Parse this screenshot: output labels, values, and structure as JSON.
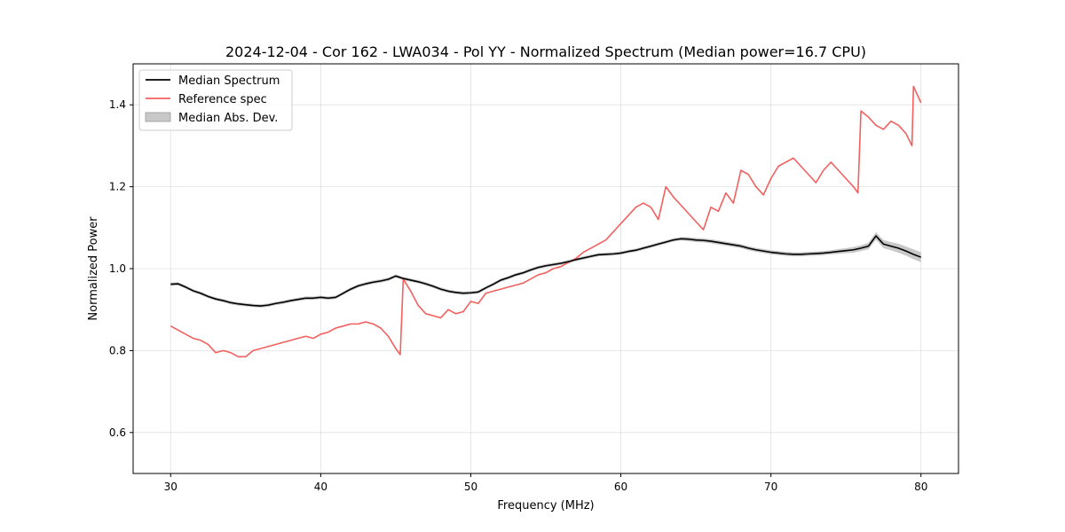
{
  "chart_data": {
    "type": "line",
    "title": "2024-12-04 - Cor 162 - LWA034 - Pol YY - Normalized Spectrum (Median power=16.7 CPU)",
    "xlabel": "Frequency (MHz)",
    "ylabel": "Normalized Power",
    "xlim": [
      27.5,
      82.5
    ],
    "ylim": [
      0.5,
      1.5
    ],
    "xticks": [
      30,
      40,
      50,
      60,
      70,
      80
    ],
    "yticks": [
      0.6,
      0.8,
      1.0,
      1.2,
      1.4
    ],
    "xtick_labels": [
      "30",
      "40",
      "50",
      "60",
      "70",
      "80"
    ],
    "ytick_labels": [
      "0.6",
      "0.8",
      "1.0",
      "1.2",
      "1.4"
    ],
    "grid": true,
    "legend_position": "top-left",
    "legend": [
      "Median Spectrum",
      "Reference spec",
      "Median Abs. Dev."
    ],
    "colors": {
      "median": "#000000",
      "reference": "#f26060",
      "mad_fill": "#c8c8c8",
      "grid": "#e0e0e0"
    },
    "series": [
      {
        "name": "Median Spectrum",
        "x": [
          30,
          30.5,
          31,
          31.5,
          32,
          32.5,
          33,
          33.5,
          34,
          34.5,
          35,
          35.5,
          36,
          36.5,
          37,
          37.5,
          38,
          38.5,
          39,
          39.5,
          40,
          40.5,
          41,
          41.5,
          42,
          42.5,
          43,
          43.5,
          44,
          44.5,
          45,
          45.5,
          46,
          46.5,
          47,
          47.5,
          48,
          48.5,
          49,
          49.5,
          50,
          50.5,
          51,
          51.5,
          52,
          52.5,
          53,
          53.5,
          54,
          54.5,
          55,
          55.5,
          56,
          56.5,
          57,
          57.5,
          58,
          58.5,
          59,
          59.5,
          60,
          60.5,
          61,
          61.5,
          62,
          62.5,
          63,
          63.5,
          64,
          64.5,
          65,
          65.5,
          66,
          66.5,
          67,
          67.5,
          68,
          68.5,
          69,
          69.5,
          70,
          70.5,
          71,
          71.5,
          72,
          72.5,
          73,
          73.5,
          74,
          74.5,
          75,
          75.5,
          76,
          76.5,
          77,
          77.5,
          78,
          78.5,
          79,
          79.5,
          80
        ],
        "y": [
          0.962,
          0.963,
          0.955,
          0.946,
          0.94,
          0.932,
          0.926,
          0.922,
          0.917,
          0.914,
          0.912,
          0.91,
          0.909,
          0.911,
          0.915,
          0.918,
          0.922,
          0.925,
          0.928,
          0.928,
          0.93,
          0.928,
          0.93,
          0.94,
          0.95,
          0.958,
          0.963,
          0.967,
          0.97,
          0.974,
          0.982,
          0.976,
          0.972,
          0.968,
          0.963,
          0.957,
          0.95,
          0.945,
          0.942,
          0.94,
          0.941,
          0.943,
          0.953,
          0.962,
          0.972,
          0.978,
          0.985,
          0.99,
          0.997,
          1.003,
          1.007,
          1.01,
          1.013,
          1.017,
          1.022,
          1.026,
          1.03,
          1.034,
          1.035,
          1.036,
          1.038,
          1.042,
          1.045,
          1.05,
          1.055,
          1.06,
          1.065,
          1.07,
          1.073,
          1.072,
          1.07,
          1.069,
          1.067,
          1.064,
          1.061,
          1.058,
          1.055,
          1.05,
          1.046,
          1.043,
          1.04,
          1.038,
          1.036,
          1.035,
          1.035,
          1.036,
          1.037,
          1.038,
          1.04,
          1.042,
          1.044,
          1.046,
          1.05,
          1.055,
          1.08,
          1.06,
          1.055,
          1.05,
          1.043,
          1.035,
          1.028
        ],
        "mad": [
          0.004,
          0.004,
          0.004,
          0.004,
          0.004,
          0.004,
          0.004,
          0.004,
          0.004,
          0.004,
          0.004,
          0.004,
          0.004,
          0.004,
          0.004,
          0.004,
          0.004,
          0.004,
          0.004,
          0.004,
          0.004,
          0.004,
          0.004,
          0.004,
          0.004,
          0.004,
          0.004,
          0.004,
          0.004,
          0.004,
          0.004,
          0.004,
          0.004,
          0.004,
          0.004,
          0.004,
          0.004,
          0.004,
          0.004,
          0.004,
          0.004,
          0.004,
          0.004,
          0.004,
          0.004,
          0.004,
          0.004,
          0.004,
          0.004,
          0.004,
          0.004,
          0.004,
          0.004,
          0.004,
          0.004,
          0.004,
          0.004,
          0.004,
          0.004,
          0.004,
          0.004,
          0.004,
          0.004,
          0.004,
          0.004,
          0.004,
          0.004,
          0.004,
          0.004,
          0.005,
          0.005,
          0.005,
          0.005,
          0.005,
          0.005,
          0.005,
          0.005,
          0.005,
          0.005,
          0.005,
          0.005,
          0.005,
          0.005,
          0.005,
          0.005,
          0.005,
          0.005,
          0.005,
          0.005,
          0.006,
          0.006,
          0.007,
          0.007,
          0.008,
          0.009,
          0.01,
          0.01,
          0.011,
          0.011,
          0.012,
          0.012
        ]
      },
      {
        "name": "Reference spec",
        "x": [
          30,
          30.5,
          31,
          31.5,
          32,
          32.5,
          33,
          33.5,
          34,
          34.5,
          35,
          35.5,
          36,
          36.5,
          37,
          37.5,
          38,
          38.5,
          39,
          39.5,
          40,
          40.5,
          41,
          41.5,
          42,
          42.5,
          43,
          43.5,
          44,
          44.5,
          45,
          45.3,
          45.5,
          46,
          46.5,
          47,
          47.5,
          48,
          48.5,
          49,
          49.5,
          50,
          50.5,
          51,
          51.5,
          52,
          52.5,
          53,
          53.5,
          54,
          54.5,
          55,
          55.5,
          56,
          56.5,
          57,
          57.5,
          58,
          58.5,
          59,
          59.5,
          60,
          60.5,
          61,
          61.5,
          62,
          62.5,
          63,
          63.5,
          64,
          64.5,
          65,
          65.5,
          66,
          66.5,
          67,
          67.5,
          68,
          68.5,
          69,
          69.5,
          70,
          70.5,
          71,
          71.5,
          72,
          72.5,
          73,
          73.5,
          74,
          74.5,
          75,
          75.5,
          75.8,
          76,
          76.5,
          77,
          77.5,
          78,
          78.5,
          79,
          79.4,
          79.5,
          80
        ],
        "y": [
          0.86,
          0.85,
          0.84,
          0.83,
          0.825,
          0.815,
          0.795,
          0.8,
          0.795,
          0.785,
          0.785,
          0.8,
          0.805,
          0.81,
          0.815,
          0.82,
          0.825,
          0.83,
          0.835,
          0.83,
          0.84,
          0.845,
          0.855,
          0.86,
          0.865,
          0.865,
          0.87,
          0.865,
          0.855,
          0.835,
          0.805,
          0.79,
          0.975,
          0.945,
          0.91,
          0.89,
          0.885,
          0.88,
          0.9,
          0.89,
          0.895,
          0.92,
          0.915,
          0.94,
          0.945,
          0.95,
          0.955,
          0.96,
          0.965,
          0.975,
          0.985,
          0.99,
          1.0,
          1.005,
          1.015,
          1.025,
          1.04,
          1.05,
          1.06,
          1.07,
          1.09,
          1.11,
          1.13,
          1.15,
          1.16,
          1.15,
          1.12,
          1.2,
          1.175,
          1.155,
          1.135,
          1.115,
          1.095,
          1.15,
          1.14,
          1.185,
          1.16,
          1.24,
          1.23,
          1.2,
          1.18,
          1.22,
          1.25,
          1.26,
          1.27,
          1.25,
          1.23,
          1.21,
          1.24,
          1.26,
          1.24,
          1.22,
          1.2,
          1.185,
          1.385,
          1.37,
          1.35,
          1.34,
          1.36,
          1.35,
          1.33,
          1.3,
          1.445,
          1.405
        ]
      }
    ]
  }
}
